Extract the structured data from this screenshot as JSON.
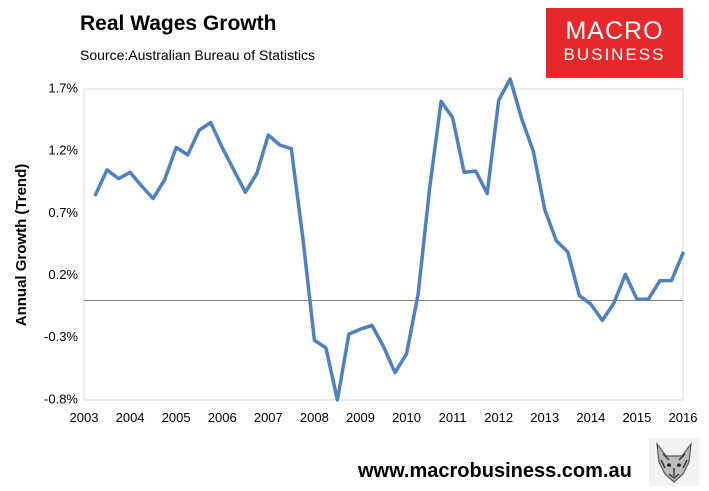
{
  "header": {
    "title": "Real Wages Growth",
    "source": "Source:Australian Bureau of Statistics"
  },
  "logo": {
    "line1": "MACRO",
    "line2": "BUSINESS",
    "color": "#e8282b"
  },
  "footer": {
    "website": "www.macrobusiness.com.au",
    "mascot_icon": "wolf-icon"
  },
  "chart_data": {
    "type": "line",
    "title": "Real Wages Growth",
    "xlabel": "",
    "ylabel": "Annual Growth (Trend)",
    "ylim": [
      -0.8,
      1.7
    ],
    "xlim": [
      2003,
      2016
    ],
    "yticks": [
      1.7,
      1.2,
      0.7,
      0.2,
      -0.3,
      -0.8
    ],
    "ytick_labels": [
      "1.7%",
      "1.2%",
      "0.7%",
      "0.2%",
      "-0.3%",
      "-0.8%"
    ],
    "xticks": [
      2003,
      2004,
      2005,
      2006,
      2007,
      2008,
      2009,
      2010,
      2011,
      2012,
      2013,
      2014,
      2015,
      2016
    ],
    "xtick_labels": [
      "2003",
      "2004",
      "2005",
      "2006",
      "2007",
      "2008",
      "2009",
      "2010",
      "2011",
      "2012",
      "2013",
      "2014",
      "2015",
      "2016"
    ],
    "zero_line": 0,
    "grid": false,
    "series": [
      {
        "name": "Real Wages Growth",
        "color": "#4f81bd",
        "x": [
          2003.25,
          2003.5,
          2003.75,
          2004.0,
          2004.25,
          2004.5,
          2004.75,
          2005.0,
          2005.25,
          2005.5,
          2005.75,
          2006.0,
          2006.25,
          2006.5,
          2006.75,
          2007.0,
          2007.25,
          2007.5,
          2007.75,
          2008.0,
          2008.25,
          2008.5,
          2008.75,
          2009.0,
          2009.25,
          2009.5,
          2009.75,
          2010.0,
          2010.25,
          2010.5,
          2010.75,
          2011.0,
          2011.25,
          2011.5,
          2011.75,
          2012.0,
          2012.25,
          2012.5,
          2012.75,
          2013.0,
          2013.25,
          2013.5,
          2013.75,
          2014.0,
          2014.25,
          2014.5,
          2014.75,
          2015.0,
          2015.25,
          2015.5,
          2015.75,
          2016.0
        ],
        "values": [
          0.85,
          1.05,
          0.98,
          1.03,
          0.92,
          0.82,
          0.97,
          1.23,
          1.17,
          1.37,
          1.43,
          1.23,
          1.05,
          0.87,
          1.02,
          1.33,
          1.25,
          1.22,
          0.5,
          -0.32,
          -0.38,
          -0.8,
          -0.27,
          -0.23,
          -0.2,
          -0.37,
          -0.58,
          -0.43,
          0.05,
          0.9,
          1.6,
          1.47,
          1.03,
          1.04,
          0.86,
          1.61,
          1.78,
          1.46,
          1.2,
          0.73,
          0.48,
          0.39,
          0.04,
          -0.03,
          -0.16,
          -0.02,
          0.21,
          0.01,
          0.01,
          0.16,
          0.16,
          0.38
        ]
      }
    ]
  }
}
